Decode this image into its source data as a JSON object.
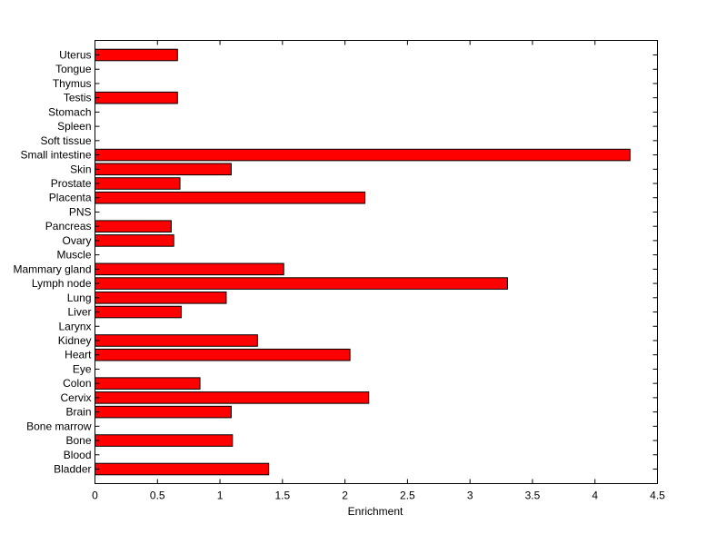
{
  "chart_data": {
    "type": "bar",
    "orientation": "horizontal",
    "title": "",
    "xlabel": "Enrichment",
    "ylabel": "",
    "xlim": [
      0,
      4.5
    ],
    "xticks": [
      0,
      0.5,
      1,
      1.5,
      2,
      2.5,
      3,
      3.5,
      4,
      4.5
    ],
    "grid": false,
    "legend": "none",
    "bar_color": "#ff0000",
    "bar_edge_color": "#000000",
    "categories": [
      "Bladder",
      "Blood",
      "Bone",
      "Bone marrow",
      "Brain",
      "Cervix",
      "Colon",
      "Eye",
      "Heart",
      "Kidney",
      "Larynx",
      "Liver",
      "Lung",
      "Lymph node",
      "Mammary gland",
      "Muscle",
      "Ovary",
      "Pancreas",
      "PNS",
      "Placenta",
      "Prostate",
      "Skin",
      "Small intestine",
      "Soft tissue",
      "Spleen",
      "Stomach",
      "Testis",
      "Thymus",
      "Tongue",
      "Uterus"
    ],
    "values": [
      1.39,
      0,
      1.1,
      0,
      1.09,
      2.19,
      0.84,
      0,
      2.04,
      1.3,
      0,
      0.69,
      1.05,
      3.3,
      1.51,
      0,
      0.63,
      0.61,
      0,
      2.16,
      0.68,
      1.09,
      4.28,
      0,
      0,
      0,
      0.66,
      0,
      0,
      0.66
    ]
  }
}
